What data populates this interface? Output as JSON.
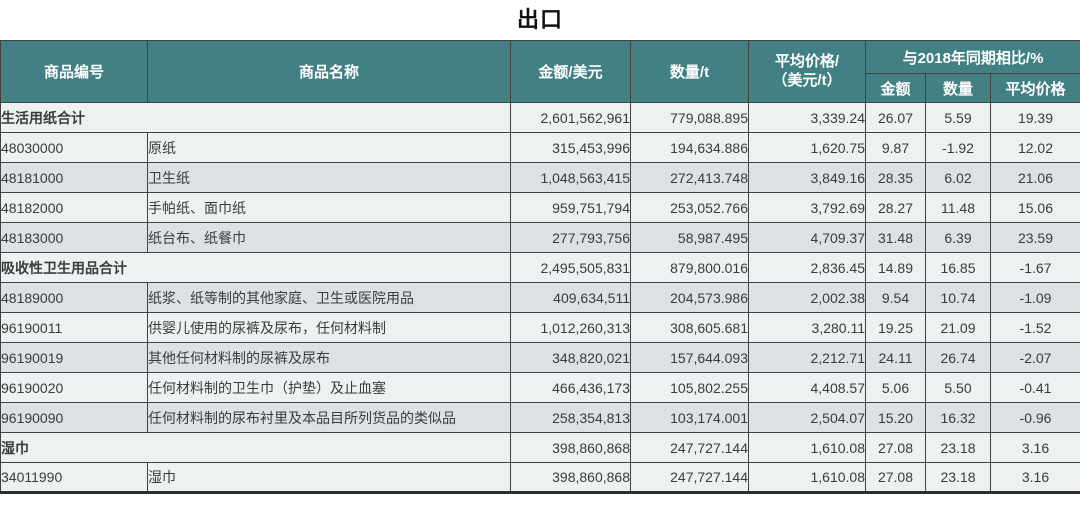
{
  "title": "出口",
  "colors": {
    "header_bg": "#428083",
    "header_text": "#ffffff",
    "row_light": "#eef1f2",
    "row_dark": "#dde1e4",
    "border": "#424242",
    "body_text": "#3b3b3b",
    "negative_text": "#e14b4b"
  },
  "header": {
    "code": "商品编号",
    "name": "商品名称",
    "amount": "金额/美元",
    "qty": "数量/t",
    "price": "平均价格/\n（美元/t）",
    "compare_group": "与2018年同期相比/%",
    "compare_amount": "金额",
    "compare_qty": "数量",
    "compare_price": "平均价格"
  },
  "rows": [
    {
      "section": true,
      "code": "",
      "name": "生活用纸合计",
      "amount": "2,601,562,961",
      "qty": "779,088.895",
      "price": "3,339.24",
      "cmp_amount": "26.07",
      "cmp_qty": "5.59",
      "cmp_price": "19.39",
      "shade": "light"
    },
    {
      "section": false,
      "code": "48030000",
      "name": "原纸",
      "amount": "315,453,996",
      "qty": "194,634.886",
      "price": "1,620.75",
      "cmp_amount": "9.87",
      "cmp_qty": "-1.92",
      "cmp_price": "12.02",
      "shade": "light"
    },
    {
      "section": false,
      "code": "48181000",
      "name": "卫生纸",
      "amount": "1,048,563,415",
      "qty": "272,413.748",
      "price": "3,849.16",
      "cmp_amount": "28.35",
      "cmp_qty": "6.02",
      "cmp_price": "21.06",
      "shade": "dark"
    },
    {
      "section": false,
      "code": "48182000",
      "name": "手帕纸、面巾纸",
      "amount": "959,751,794",
      "qty": "253,052.766",
      "price": "3,792.69",
      "cmp_amount": "28.27",
      "cmp_qty": "11.48",
      "cmp_price": "15.06",
      "shade": "light"
    },
    {
      "section": false,
      "code": "48183000",
      "name": "纸台布、纸餐巾",
      "amount": "277,793,756",
      "qty": "58,987.495",
      "price": "4,709.37",
      "cmp_amount": "31.48",
      "cmp_qty": "6.39",
      "cmp_price": "23.59",
      "shade": "dark"
    },
    {
      "section": true,
      "code": "",
      "name": "吸收性卫生用品合计",
      "amount": "2,495,505,831",
      "qty": "879,800.016",
      "price": "2,836.45",
      "cmp_amount": "14.89",
      "cmp_qty": "16.85",
      "cmp_price": "-1.67",
      "shade": "light"
    },
    {
      "section": false,
      "code": "48189000",
      "name": "纸浆、纸等制的其他家庭、卫生或医院用品",
      "amount": "409,634,511",
      "qty": "204,573.986",
      "price": "2,002.38",
      "cmp_amount": "9.54",
      "cmp_qty": "10.74",
      "cmp_price": "-1.09",
      "shade": "dark"
    },
    {
      "section": false,
      "code": "96190011",
      "name": "供婴儿使用的尿裤及尿布，任何材料制",
      "amount": "1,012,260,313",
      "qty": "308,605.681",
      "price": "3,280.11",
      "cmp_amount": "19.25",
      "cmp_qty": "21.09",
      "cmp_price": "-1.52",
      "shade": "light"
    },
    {
      "section": false,
      "code": "96190019",
      "name": "其他任何材料制的尿裤及尿布",
      "amount": "348,820,021",
      "qty": "157,644.093",
      "price": "2,212.71",
      "cmp_amount": "24.11",
      "cmp_qty": "26.74",
      "cmp_price": "-2.07",
      "shade": "dark"
    },
    {
      "section": false,
      "code": "96190020",
      "name": "任何材料制的卫生巾（护垫）及止血塞",
      "amount": "466,436,173",
      "qty": "105,802.255",
      "price": "4,408.57",
      "cmp_amount": "5.06",
      "cmp_qty": "5.50",
      "cmp_price": "-0.41",
      "shade": "light"
    },
    {
      "section": false,
      "code": "96190090",
      "name": "任何材料制的尿布衬里及本品目所列货品的类似品",
      "amount": "258,354,813",
      "qty": "103,174.001",
      "price": "2,504.07",
      "cmp_amount": "15.20",
      "cmp_qty": "16.32",
      "cmp_price": "-0.96",
      "shade": "dark"
    },
    {
      "section": true,
      "code": "",
      "name": "湿巾",
      "amount": "398,860,868",
      "qty": "247,727.144",
      "price": "1,610.08",
      "cmp_amount": "27.08",
      "cmp_qty": "23.18",
      "cmp_price": "3.16",
      "shade": "light"
    },
    {
      "section": false,
      "code": "34011990",
      "name": "湿巾",
      "amount": "398,860,868",
      "qty": "247,727.144",
      "price": "1,610.08",
      "cmp_amount": "27.08",
      "cmp_qty": "23.18",
      "cmp_price": "3.16",
      "shade": "light"
    }
  ]
}
